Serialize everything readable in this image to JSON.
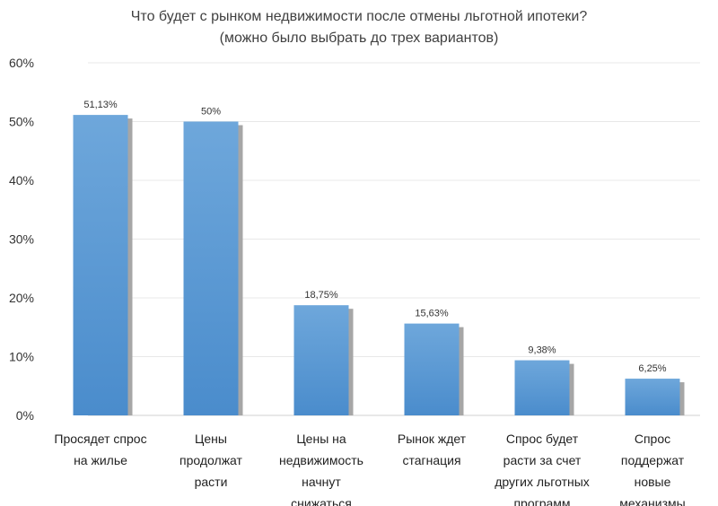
{
  "chart_data": {
    "type": "bar",
    "title": "Что будет с рынком недвижимости после отмены льготной ипотеки?",
    "subtitle": "(можно было выбрать до трех вариантов)",
    "categories": [
      [
        "Просядет спрос",
        "на жилье"
      ],
      [
        "Цены",
        "продолжат",
        "расти"
      ],
      [
        "Цены на",
        "недвижимость",
        "начнут",
        "снижаться"
      ],
      [
        "Рынок ждет",
        "стагнация"
      ],
      [
        "Спрос будет",
        "расти за счет",
        "других льготных",
        "программ"
      ],
      [
        "Спрос",
        "поддержат",
        "новые",
        "механизмы"
      ]
    ],
    "values": [
      51.13,
      50,
      18.75,
      15.63,
      9.38,
      6.25
    ],
    "data_labels": [
      "51,13%",
      "50%",
      "18,75%",
      "15,63%",
      "9,38%",
      "6,25%"
    ],
    "yticks": [
      "0%",
      "10%",
      "20%",
      "30%",
      "40%",
      "50%",
      "60%"
    ],
    "ylim": [
      0,
      60
    ],
    "grid": true,
    "bar_color": "#5b9bd5",
    "shadow_color": "#a6a6a6"
  }
}
